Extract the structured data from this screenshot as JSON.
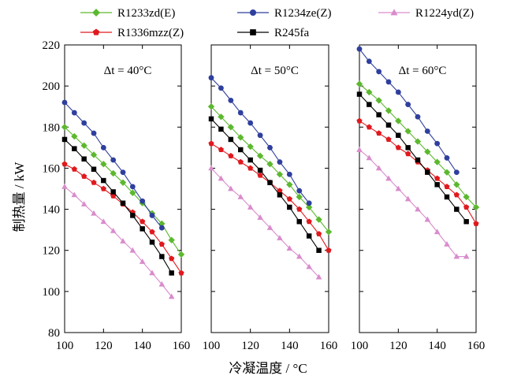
{
  "chart_data": {
    "type": "line",
    "xlabel": "冷凝温度 / °C",
    "ylabel": "制热量 / kW",
    "ylim": [
      80,
      220
    ],
    "yticks": [
      80,
      100,
      120,
      140,
      160,
      180,
      200,
      220
    ],
    "xlim": [
      100,
      160
    ],
    "xticks": [
      100,
      120,
      140,
      160
    ],
    "grid": false,
    "legend_position": "top",
    "series_styles": [
      {
        "name": "R1233zd(E)",
        "color": "#5cb82e",
        "marker": "diamond"
      },
      {
        "name": "R1234ze(Z)",
        "color": "#2f3f9e",
        "marker": "circle"
      },
      {
        "name": "R1224yd(Z)",
        "color": "#d98ccc",
        "marker": "triangle"
      },
      {
        "name": "R1336mzz(Z)",
        "color": "#e0191e",
        "marker": "pentagon"
      },
      {
        "name": "R245fa",
        "color": "#000000",
        "marker": "square"
      }
    ],
    "panels": [
      {
        "title": "Δt = 40°C",
        "series": [
          {
            "name": "R1233zd(E)",
            "x": [
              100,
              105,
              110,
              115,
              120,
              125,
              130,
              135,
              140,
              145,
              150,
              155,
              160
            ],
            "values": [
              180,
              175.5,
              171,
              166.5,
              162,
              157.5,
              153,
              148,
              143,
              138,
              133,
              125,
              118
            ]
          },
          {
            "name": "R1234ze(Z)",
            "x": [
              100,
              105,
              110,
              115,
              120,
              125,
              130,
              135,
              140,
              145,
              150
            ],
            "values": [
              192,
              187,
              182,
              177,
              170,
              164,
              158,
              151,
              144,
              137,
              131
            ]
          },
          {
            "name": "R1224yd(Z)",
            "x": [
              100,
              105,
              110,
              115,
              120,
              125,
              130,
              135,
              140,
              145,
              150,
              155
            ],
            "values": [
              151,
              147,
              142.5,
              138,
              134,
              129.5,
              124.5,
              120,
              114.5,
              109,
              103.5,
              97.5
            ]
          },
          {
            "name": "R1336mzz(Z)",
            "x": [
              100,
              105,
              110,
              115,
              120,
              125,
              130,
              135,
              140,
              145,
              150,
              155,
              160
            ],
            "values": [
              162,
              159.5,
              156,
              153,
              150,
              146.5,
              142.5,
              138.5,
              134,
              129,
              123,
              116,
              109
            ]
          },
          {
            "name": "R245fa",
            "x": [
              100,
              105,
              110,
              115,
              120,
              125,
              130,
              135,
              140,
              145,
              150,
              155
            ],
            "values": [
              174,
              169.5,
              164.5,
              159.5,
              154,
              148.5,
              143,
              137,
              130.5,
              124,
              117,
              109
            ]
          }
        ]
      },
      {
        "title": "Δt = 50°C",
        "series": [
          {
            "name": "R1233zd(E)",
            "x": [
              100,
              105,
              110,
              115,
              120,
              125,
              130,
              135,
              140,
              145,
              150,
              155,
              160
            ],
            "values": [
              190,
              185,
              180,
              175,
              170.5,
              166,
              162,
              157,
              152,
              146,
              141,
              135,
              129
            ]
          },
          {
            "name": "R1234ze(Z)",
            "x": [
              100,
              105,
              110,
              115,
              120,
              125,
              130,
              135,
              140,
              145,
              150
            ],
            "values": [
              204,
              199,
              193,
              187,
              182,
              176,
              170,
              163,
              157,
              149,
              143
            ]
          },
          {
            "name": "R1224yd(Z)",
            "x": [
              100,
              105,
              110,
              115,
              120,
              125,
              130,
              135,
              140,
              145,
              150,
              155
            ],
            "values": [
              160,
              155,
              150,
              146,
              141,
              136,
              131,
              126,
              121,
              117,
              112,
              107
            ]
          },
          {
            "name": "R1336mzz(Z)",
            "x": [
              100,
              105,
              110,
              115,
              120,
              125,
              130,
              135,
              140,
              145,
              150,
              155,
              160
            ],
            "values": [
              172,
              169,
              166,
              163,
              160,
              156.5,
              153,
              149,
              145,
              140,
              134,
              128,
              120
            ]
          },
          {
            "name": "R245fa",
            "x": [
              100,
              105,
              110,
              115,
              120,
              125,
              130,
              135,
              140,
              145,
              150,
              155
            ],
            "values": [
              184,
              179,
              174,
              169,
              164,
              159,
              153,
              147,
              141,
              134,
              127,
              120
            ]
          }
        ]
      },
      {
        "title": "Δt = 60°C",
        "series": [
          {
            "name": "R1233zd(E)",
            "x": [
              100,
              105,
              110,
              115,
              120,
              125,
              130,
              135,
              140,
              145,
              150,
              155,
              160
            ],
            "values": [
              201,
              197,
              193,
              188,
              183,
              178,
              173,
              168,
              163,
              158,
              152,
              146,
              141
            ]
          },
          {
            "name": "R1234ze(Z)",
            "x": [
              100,
              105,
              110,
              115,
              120,
              125,
              130,
              135,
              140,
              145,
              150
            ],
            "values": [
              218,
              212,
              207,
              202,
              197,
              191,
              185,
              178,
              172,
              165,
              158
            ]
          },
          {
            "name": "R1224yd(Z)",
            "x": [
              100,
              105,
              110,
              115,
              120,
              125,
              130,
              135,
              140,
              145,
              150,
              155
            ],
            "values": [
              169,
              165,
              160,
              155,
              150,
              145,
              140,
              135,
              129,
              123,
              117,
              117
            ]
          },
          {
            "name": "R1336mzz(Z)",
            "x": [
              100,
              105,
              110,
              115,
              120,
              125,
              130,
              135,
              140,
              145,
              150,
              155,
              160
            ],
            "values": [
              183,
              180,
              177,
              174,
              170,
              167,
              163,
              159,
              155,
              151,
              147,
              141,
              133
            ]
          },
          {
            "name": "R245fa",
            "x": [
              100,
              105,
              110,
              115,
              120,
              125,
              130,
              135,
              140,
              145,
              150,
              155
            ],
            "values": [
              196,
              191,
              186,
              181,
              176,
              170,
              164,
              158,
              152,
              146,
              140,
              134
            ]
          }
        ]
      }
    ]
  }
}
